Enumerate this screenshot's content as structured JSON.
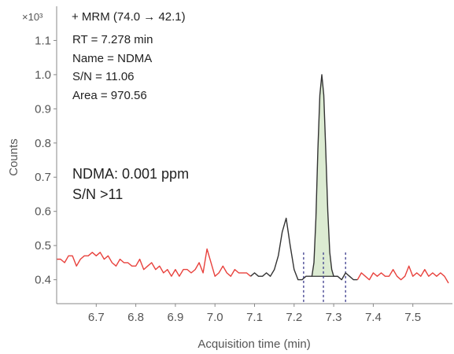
{
  "chart_data": {
    "type": "line",
    "title": "+ MRM (74.0 → 42.1)",
    "xlabel": "Acquisition time (min)",
    "ylabel": "Counts",
    "y_multiplier": "×10³",
    "xlim": [
      6.6,
      7.6
    ],
    "ylim": [
      0.33,
      1.2
    ],
    "x_ticks": [
      "6.7",
      "6.8",
      "6.9",
      "7.0",
      "7.1",
      "7.2",
      "7.3",
      "7.4",
      "7.5"
    ],
    "y_ticks": [
      "0.4",
      "0.5",
      "0.6",
      "0.7",
      "0.8",
      "0.9",
      "1.0",
      "1.1"
    ],
    "peak_info": {
      "rt": "RT = 7.278 min",
      "name": "Name = NDMA",
      "sn": "S/N = 11.06",
      "area": "Area = 970.56"
    },
    "highlight": {
      "line1": "NDMA: 0.001 ppm",
      "line2": "S/N >11"
    },
    "integration": {
      "start": 7.245,
      "end": 7.31
    },
    "markers": [
      7.224,
      7.274,
      7.33
    ],
    "colors": {
      "trace_outside": "#e8413c",
      "trace_inside": "#333333",
      "peak_fill": "#dcebd2",
      "marker": "#3a3a8c"
    },
    "series": [
      {
        "x": [
          6.6,
          6.61,
          6.62,
          6.63,
          6.64,
          6.65,
          6.66,
          6.67,
          6.68,
          6.69,
          6.7,
          6.71,
          6.72,
          6.73,
          6.74,
          6.75,
          6.76,
          6.77,
          6.78,
          6.79,
          6.8,
          6.81,
          6.82,
          6.83,
          6.84,
          6.85,
          6.86,
          6.87,
          6.88,
          6.89,
          6.9,
          6.91,
          6.92,
          6.93,
          6.94,
          6.95,
          6.96,
          6.97,
          6.98,
          6.99,
          7.0,
          7.01,
          7.02,
          7.03,
          7.04,
          7.05,
          7.06,
          7.07,
          7.08,
          7.09,
          7.1,
          7.11,
          7.12,
          7.13,
          7.14,
          7.15,
          7.16,
          7.17,
          7.18,
          7.19,
          7.2,
          7.21,
          7.22,
          7.23,
          7.24,
          7.245,
          7.25,
          7.255,
          7.26,
          7.265,
          7.27,
          7.275,
          7.28,
          7.285,
          7.29,
          7.295,
          7.3,
          7.31,
          7.32,
          7.33,
          7.34,
          7.35,
          7.36,
          7.37,
          7.38,
          7.39,
          7.4,
          7.41,
          7.42,
          7.43,
          7.44,
          7.45,
          7.46,
          7.47,
          7.48,
          7.49,
          7.5,
          7.51,
          7.52,
          7.53,
          7.54,
          7.55,
          7.56,
          7.57,
          7.58,
          7.59
        ],
        "y": [
          0.46,
          0.46,
          0.45,
          0.47,
          0.47,
          0.44,
          0.46,
          0.47,
          0.47,
          0.48,
          0.47,
          0.48,
          0.46,
          0.47,
          0.45,
          0.44,
          0.46,
          0.45,
          0.45,
          0.44,
          0.44,
          0.46,
          0.43,
          0.44,
          0.45,
          0.43,
          0.44,
          0.42,
          0.43,
          0.41,
          0.43,
          0.41,
          0.43,
          0.43,
          0.42,
          0.43,
          0.45,
          0.42,
          0.49,
          0.45,
          0.41,
          0.42,
          0.44,
          0.42,
          0.41,
          0.43,
          0.42,
          0.42,
          0.42,
          0.41,
          0.42,
          0.41,
          0.41,
          0.42,
          0.41,
          0.43,
          0.47,
          0.54,
          0.58,
          0.5,
          0.43,
          0.4,
          0.4,
          0.41,
          0.41,
          0.41,
          0.45,
          0.58,
          0.78,
          0.94,
          1.0,
          0.94,
          0.78,
          0.6,
          0.48,
          0.43,
          0.41,
          0.41,
          0.4,
          0.42,
          0.41,
          0.4,
          0.4,
          0.42,
          0.41,
          0.4,
          0.42,
          0.41,
          0.42,
          0.41,
          0.41,
          0.43,
          0.41,
          0.4,
          0.41,
          0.44,
          0.41,
          0.42,
          0.41,
          0.43,
          0.41,
          0.42,
          0.41,
          0.42,
          0.41,
          0.39
        ]
      }
    ]
  }
}
